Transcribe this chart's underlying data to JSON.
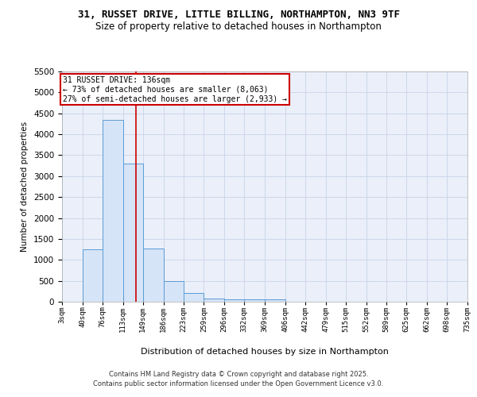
{
  "title1": "31, RUSSET DRIVE, LITTLE BILLING, NORTHAMPTON, NN3 9TF",
  "title2": "Size of property relative to detached houses in Northampton",
  "xlabel": "Distribution of detached houses by size in Northampton",
  "ylabel": "Number of detached properties",
  "bin_edges": [
    3,
    40,
    76,
    113,
    149,
    186,
    223,
    259,
    296,
    332,
    369,
    406,
    442,
    479,
    515,
    552,
    589,
    625,
    662,
    698,
    735
  ],
  "bar_heights": [
    0,
    1260,
    4350,
    3300,
    1280,
    500,
    200,
    80,
    60,
    50,
    50,
    0,
    0,
    0,
    0,
    0,
    0,
    0,
    0,
    0
  ],
  "bar_facecolor": "#d6e4f7",
  "bar_edgecolor": "#5b9bd5",
  "grid_color": "#c8d4e8",
  "bg_color": "#eaeff9",
  "vline_x": 136,
  "vline_color": "#cc0000",
  "annotation_title": "31 RUSSET DRIVE: 136sqm",
  "annotation_line1": "← 73% of detached houses are smaller (8,063)",
  "annotation_line2": "27% of semi-detached houses are larger (2,933) →",
  "annotation_box_color": "#ffffff",
  "annotation_box_edgecolor": "#cc0000",
  "ylim": [
    0,
    5500
  ],
  "yticks": [
    0,
    500,
    1000,
    1500,
    2000,
    2500,
    3000,
    3500,
    4000,
    4500,
    5000,
    5500
  ],
  "footnote1": "Contains HM Land Registry data © Crown copyright and database right 2025.",
  "footnote2": "Contains public sector information licensed under the Open Government Licence v3.0."
}
